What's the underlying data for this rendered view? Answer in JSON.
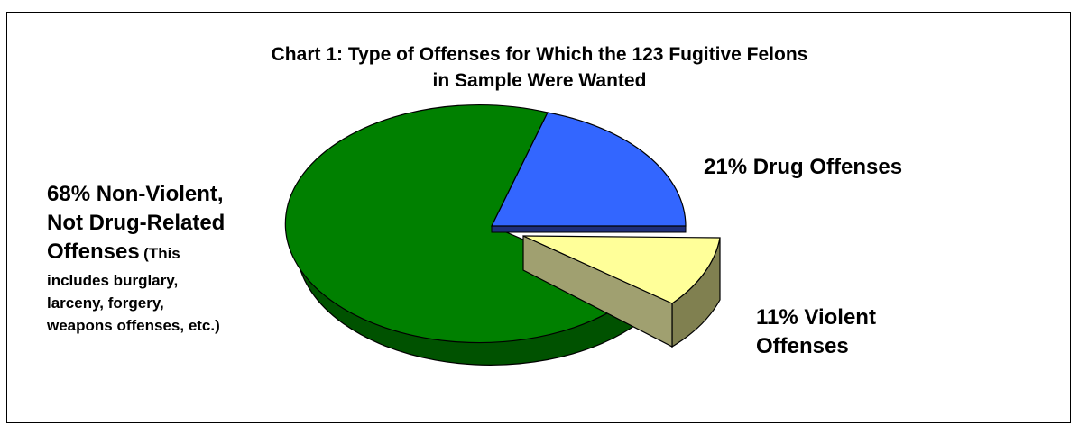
{
  "chart_data": {
    "type": "pie",
    "title_line1": "Chart 1:  Type of Offenses for Which the 123 Fugitive Felons",
    "title_line2": "in Sample Were Wanted",
    "slices": [
      {
        "category": "Drug Offenses",
        "value": 21,
        "color": "#3366ff",
        "exploded": false
      },
      {
        "category": "Violent Offenses",
        "value": 11,
        "color": "#ffff99",
        "exploded": true
      },
      {
        "category": "Non-Violent, Not Drug-Related Offenses",
        "value": 68,
        "color": "#008000",
        "exploded": false
      }
    ],
    "labels": {
      "drug": "21% Drug Offenses",
      "violent_1": "11% Violent",
      "violent_2": "Offenses",
      "nonviolent_1": "68% Non-Violent,",
      "nonviolent_2": "Not Drug-Related",
      "nonviolent_3": "Offenses",
      "nonviolent_note_1": "(This",
      "nonviolent_note_2": "includes burglary,",
      "nonviolent_note_3": "larceny, forgery,",
      "nonviolent_note_4": "weapons offenses, etc.)"
    }
  }
}
